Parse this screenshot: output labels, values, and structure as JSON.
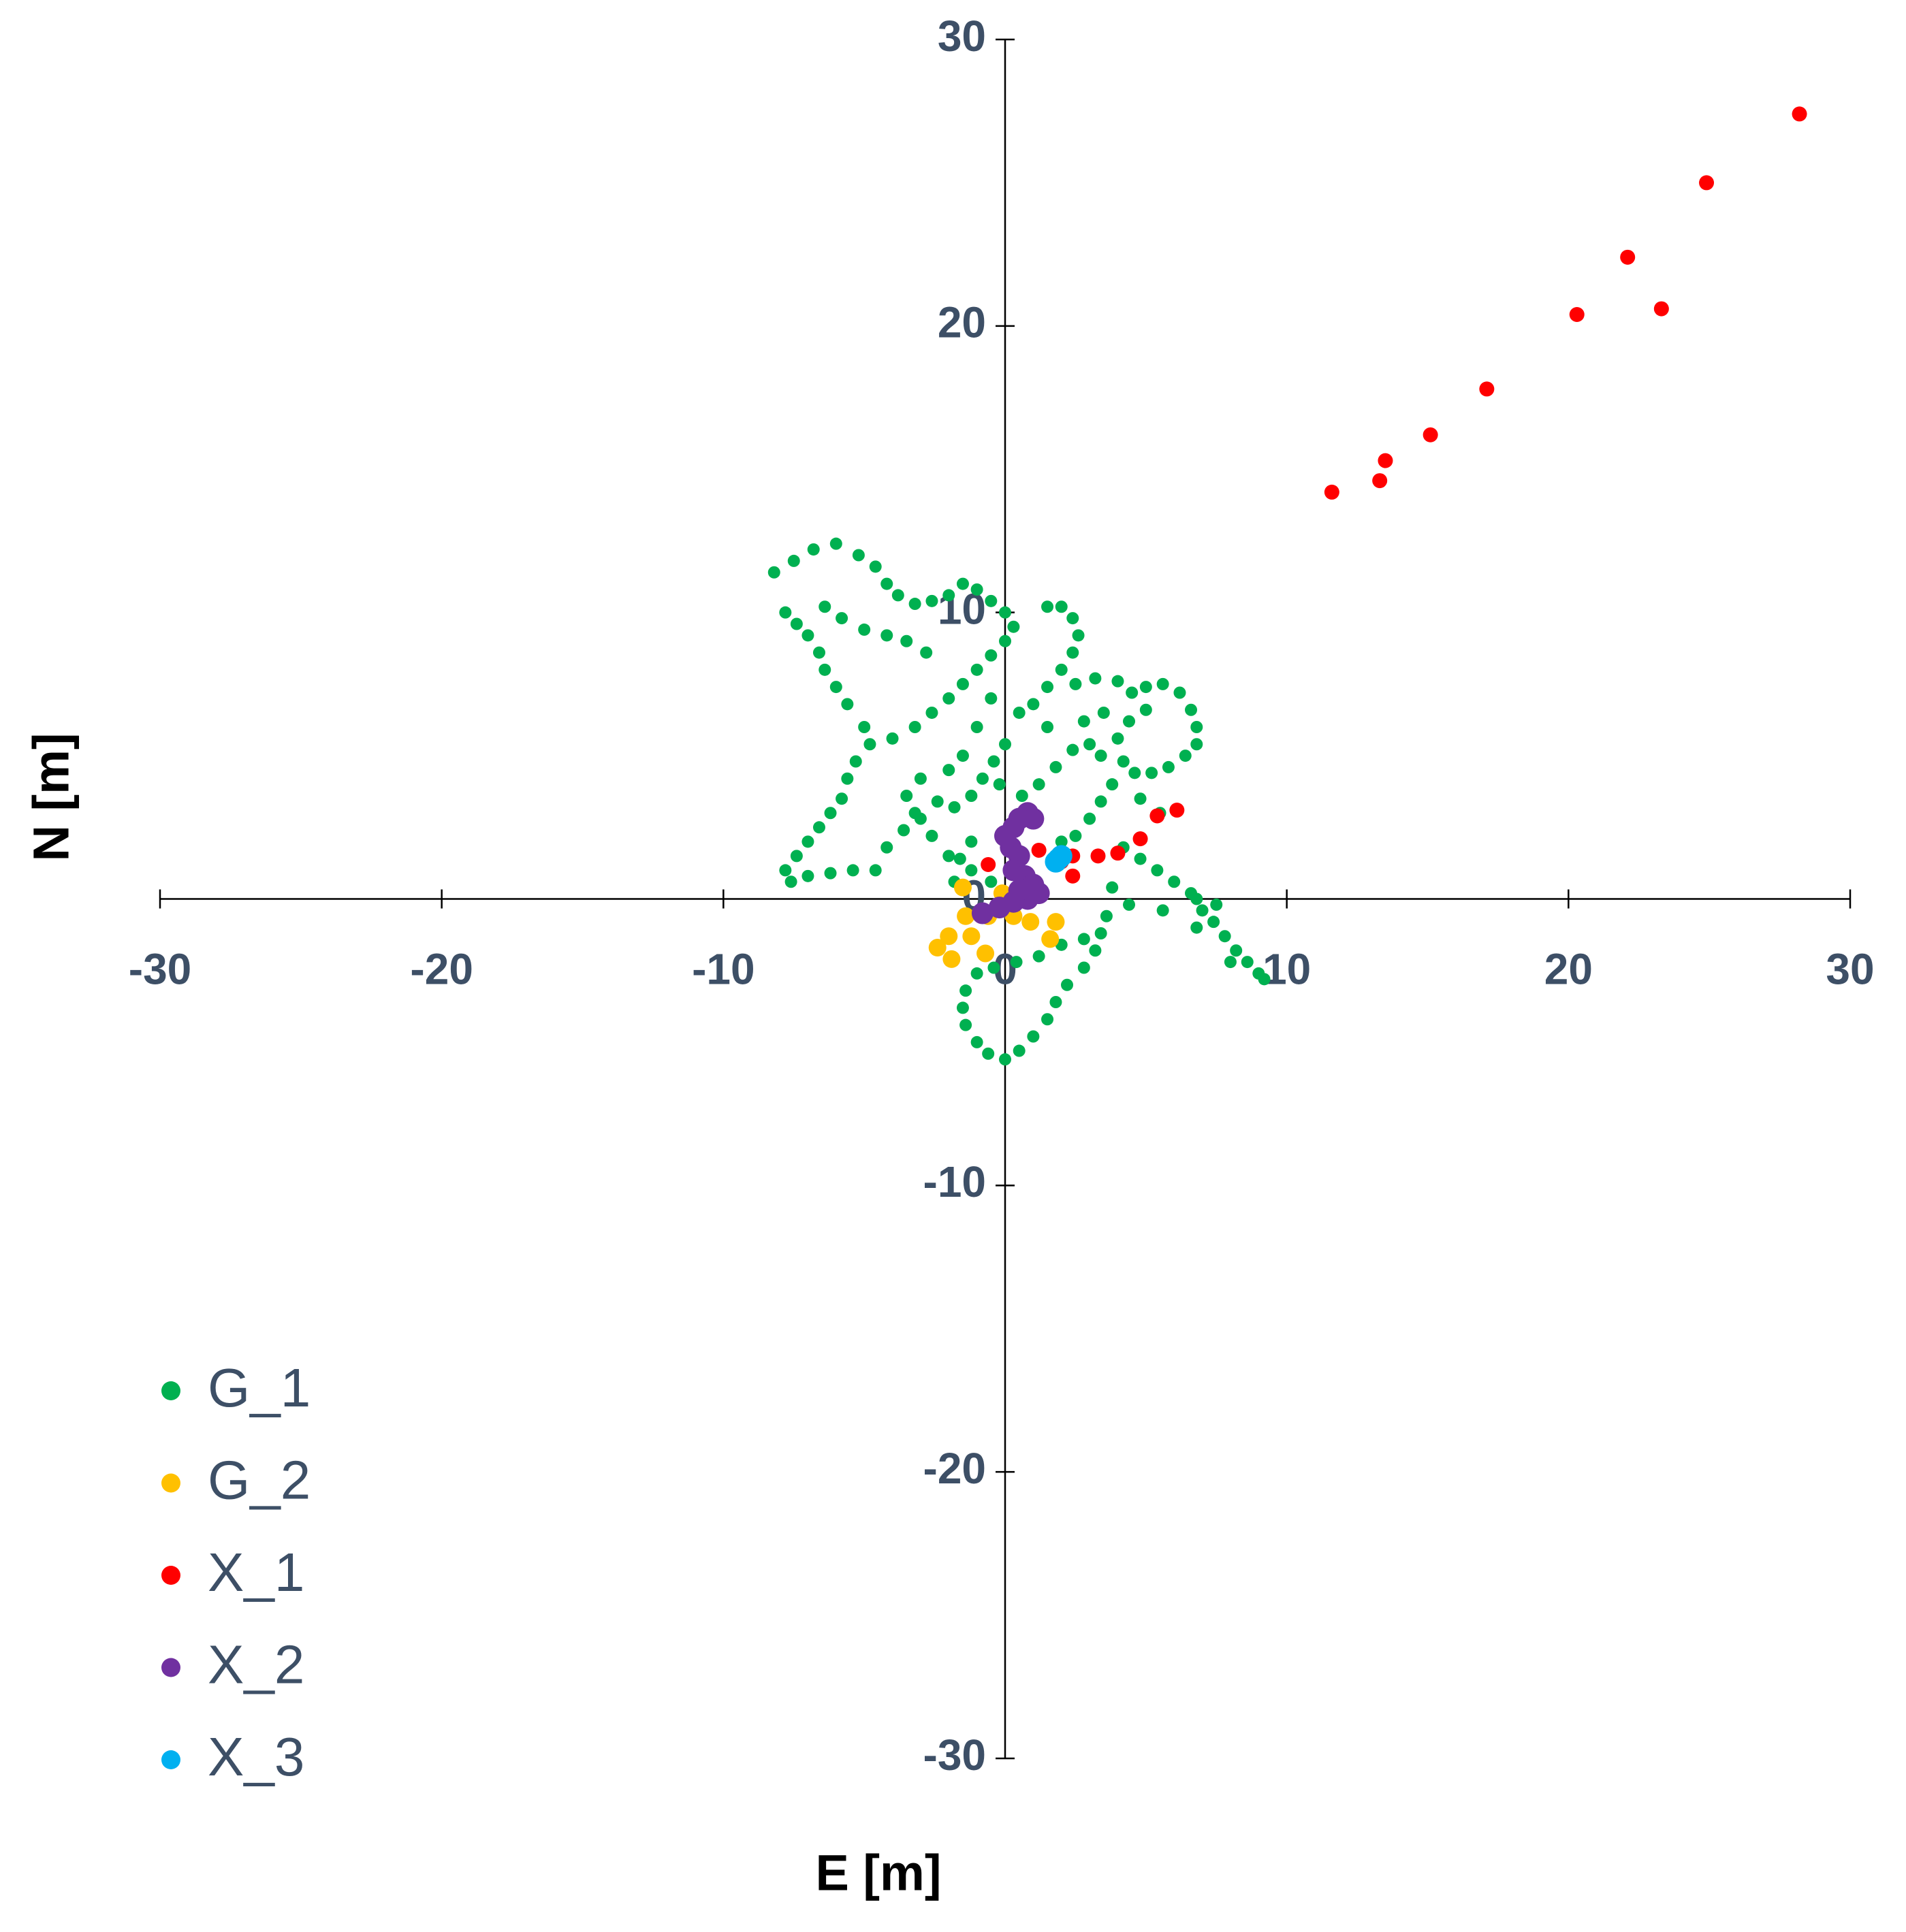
{
  "chart_data": {
    "type": "scatter",
    "xlabel": "E [m]",
    "ylabel": "N [m]",
    "xlim": [
      -30,
      30
    ],
    "ylim": [
      -30,
      30
    ],
    "xticks": [
      -30,
      -20,
      -10,
      0,
      10,
      20,
      30
    ],
    "yticks": [
      -30,
      -20,
      -10,
      0,
      10,
      20,
      30
    ],
    "legend": "lower left",
    "series": [
      {
        "name": "G_1",
        "color": "#00b050",
        "x": [
          -8.2,
          -7.5,
          -6.8,
          -6,
          -5.2,
          -4.6,
          -4.2,
          -3.8,
          -3.2,
          -2.6,
          -2,
          -1.5,
          -1,
          -0.5,
          0,
          0.3,
          0,
          -0.5,
          -1,
          -1.5,
          -2,
          -2.6,
          -3.2,
          -4,
          -4.8,
          -5.3,
          -5.6,
          -5.8,
          -6.2,
          -6.6,
          -7,
          -7.4,
          -7.8,
          -7.6,
          -7,
          -6.2,
          -5.4,
          -4.6,
          -4.2,
          -3.6,
          -3,
          -2.4,
          -1.8,
          -1.2,
          -0.8,
          -0.4,
          0,
          -7.8,
          -7.4,
          -7,
          -6.6,
          -6.4,
          -6,
          -5.6,
          -5,
          -6.4,
          -5.8,
          -5,
          -4.2,
          -3.5,
          -2.8,
          1.5,
          2,
          2.4,
          2.6,
          2.4,
          2,
          1.5,
          1,
          2.5,
          3.2,
          4,
          4.5,
          5,
          5.6,
          6.2,
          6.6,
          6.8,
          6.8,
          6.4,
          5.8,
          5.2,
          4.6,
          4.2,
          4,
          4.4,
          5,
          3.8,
          3.4,
          3,
          2.5,
          2,
          3.4,
          3,
          2.4,
          1.8,
          1.2,
          0.6,
          -0.2,
          1.5,
          0.5,
          -0.5,
          -1,
          -1.5,
          -2,
          -3,
          -3.5,
          -3.2,
          -2.6,
          -2,
          -1.2,
          -0.5,
          4.2,
          4.8,
          5.4,
          6,
          6.6,
          7,
          7.4,
          7.8,
          8.2,
          8.6,
          9,
          9.2,
          8,
          6.8,
          5.6,
          4.4,
          3.8,
          3.6,
          3.4,
          3.2,
          2.8,
          2.2,
          1.8,
          1.5,
          1,
          0.5,
          0,
          -0.6,
          -1,
          -1.4,
          -1.5,
          -1.4,
          -1,
          -0.4,
          0.4,
          1.2,
          2,
          2.8,
          -1.2,
          -1.6,
          -1.8,
          3.5,
          2.8,
          4.8,
          5.5,
          6.8,
          7.5
        ],
        "y": [
          11.4,
          11.8,
          12.2,
          12.4,
          12,
          11.6,
          11,
          10.6,
          10.3,
          10.4,
          10.6,
          11,
          10.8,
          10.4,
          10,
          9.5,
          9,
          8.5,
          8,
          7.5,
          7,
          6.5,
          6,
          5.6,
          5.4,
          4.8,
          4.2,
          3.5,
          3,
          2.5,
          2,
          1.5,
          1,
          0.6,
          0.8,
          0.9,
          1,
          1,
          1.8,
          2.4,
          2.8,
          3.4,
          3.2,
          3.6,
          4.2,
          4.8,
          5.4,
          10,
          9.6,
          9.2,
          8.6,
          8,
          7.4,
          6.8,
          6,
          10.2,
          9.8,
          9.4,
          9.2,
          9,
          8.6,
          10.2,
          10.2,
          9.8,
          9.2,
          8.6,
          8,
          7.4,
          6.8,
          7.5,
          7.7,
          7.6,
          7.2,
          7.4,
          7.5,
          7.2,
          6.6,
          6,
          5.4,
          5,
          4.6,
          4.4,
          4.4,
          4.8,
          5.6,
          6.2,
          6.6,
          4,
          3.4,
          2.8,
          2.2,
          2,
          5,
          5.4,
          5.2,
          4.6,
          4,
          3.6,
          4,
          6,
          6.5,
          7,
          6,
          5,
          4.5,
          4.2,
          3.6,
          3,
          2.2,
          1.5,
          1,
          0.6,
          1.8,
          1.4,
          1,
          0.6,
          0.2,
          -0.4,
          -0.8,
          -1.3,
          -1.8,
          -2.2,
          -2.6,
          -2.8,
          -2.2,
          -1,
          -0.4,
          -0.2,
          0.4,
          -0.6,
          -1.2,
          -1.8,
          -2.4,
          -3,
          -3.6,
          -4.2,
          -4.8,
          -5.3,
          -5.6,
          -5.4,
          -5,
          -4.4,
          -3.8,
          -3.2,
          -2.6,
          -2.4,
          -2.2,
          -2,
          -1.6,
          -1.4,
          2,
          1.4,
          0.6,
          6.5,
          6.2,
          3.5,
          3,
          0,
          -0.2
        ]
      },
      {
        "name": "G_2",
        "color": "#ffc000",
        "x": [
          -1.5,
          -2,
          -2.4,
          -1.9,
          -1.2,
          -0.6,
          0.3,
          0.9,
          1.8,
          1.6,
          -0.7,
          -1.4,
          -0.1
        ],
        "y": [
          0.4,
          -1.3,
          -1.7,
          -2.1,
          -1.3,
          -0.6,
          -0.6,
          -0.8,
          -0.8,
          -1.4,
          -1.9,
          -0.6,
          0.2
        ]
      },
      {
        "name": "X_1",
        "color": "#ff0000",
        "x": [
          28.2,
          24.9,
          22.1,
          23.3,
          20.3,
          17.1,
          15.1,
          13.5,
          13.3,
          11.6,
          6.1,
          5.4,
          4.8,
          4,
          3.3,
          2.4,
          2,
          2.4,
          1.2,
          -0.6
        ],
        "y": [
          27.4,
          25,
          22.4,
          20.6,
          20.4,
          17.8,
          16.2,
          15.3,
          14.6,
          14.2,
          3.1,
          2.9,
          2.1,
          1.6,
          1.5,
          1.5,
          1.3,
          0.8,
          1.7,
          1.2
        ]
      },
      {
        "name": "X_2",
        "color": "#7030a0",
        "x": [
          0.8,
          0.5,
          0.3,
          0,
          0.2,
          0.5,
          0.3,
          0.7,
          1,
          1.2,
          0.8,
          0.3,
          -0.2,
          -0.8,
          0.5,
          1
        ],
        "y": [
          3,
          2.8,
          2.5,
          2.2,
          1.8,
          1.5,
          1,
          0.8,
          0.5,
          0.2,
          0,
          -0.1,
          -0.3,
          -0.5,
          0.3,
          2.8
        ]
      },
      {
        "name": "X_3",
        "color": "#00b0f0",
        "x": [
          1.9,
          2,
          1.8
        ],
        "y": [
          1.4,
          1.5,
          1.3
        ]
      }
    ]
  }
}
